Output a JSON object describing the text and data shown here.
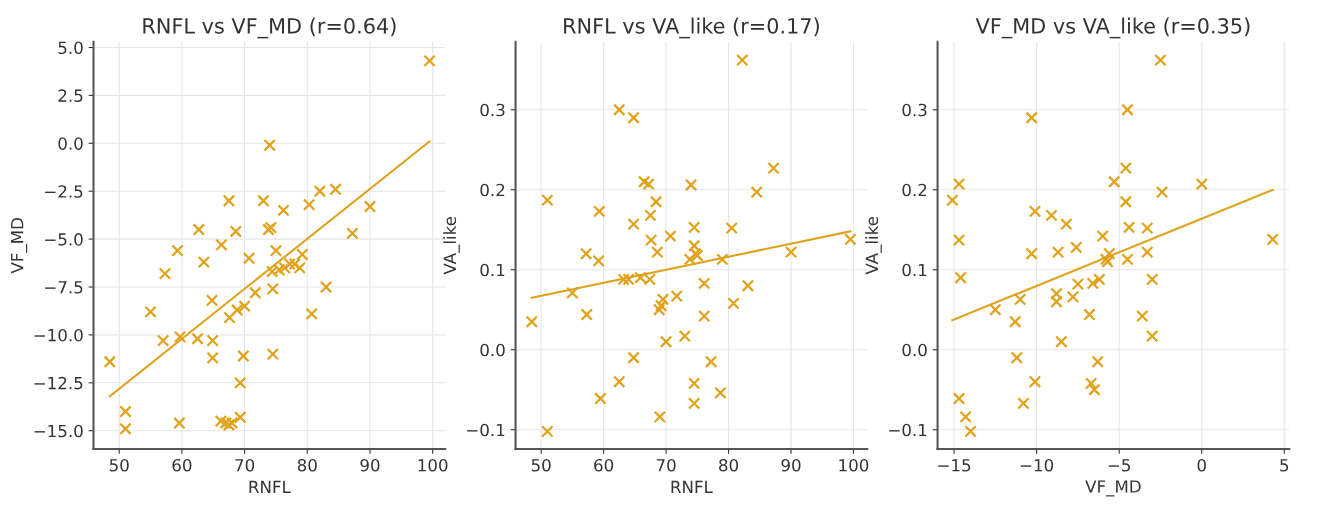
{
  "chart_data": [
    {
      "type": "scatter",
      "title": "RNFL vs VF_MD (r=0.64)",
      "xlabel": "RNFL",
      "ylabel": "VF_MD",
      "xlim": [
        45.9,
        102
      ],
      "ylim": [
        -15.95,
        5.3
      ],
      "xticks": [
        50,
        60,
        70,
        80,
        90,
        100
      ],
      "yticks": [
        {
          "value": -15,
          "label": "−15.0"
        },
        {
          "value": -12.5,
          "label": "−12.5"
        },
        {
          "value": -10,
          "label": "−10.0"
        },
        {
          "value": -7.5,
          "label": "−7.5"
        },
        {
          "value": -5,
          "label": "−5.0"
        },
        {
          "value": -2.5,
          "label": "−2.5"
        },
        {
          "value": 0,
          "label": "0.0"
        },
        {
          "value": 2.5,
          "label": "2.5"
        },
        {
          "value": 5,
          "label": "5.0"
        }
      ],
      "grid": true,
      "series": [
        {
          "marker": "cross",
          "color": "#e0a21a",
          "x": [
            48.5,
            51,
            51,
            55,
            57,
            57.3,
            59.3,
            59.7,
            59.6,
            62.5,
            62.7,
            63.5,
            64.8,
            64.9,
            64.9,
            66.3,
            66.2,
            67,
            67.5,
            68,
            69.3,
            67.5,
            67.6,
            68.6,
            68.8,
            69.3,
            69.8,
            70,
            70.7,
            71.7,
            73,
            73.8,
            74.2,
            74,
            74.4,
            74.5,
            74.5,
            75,
            75.5,
            76.2,
            76.4,
            77.2,
            78,
            78.8,
            79.2,
            80.3,
            80.7,
            82,
            83,
            84.5,
            87.2,
            90,
            99.5
          ],
          "values": [
            -11.4,
            -14.0,
            -14.9,
            -8.8,
            -10.3,
            -6.8,
            -5.6,
            -10.1,
            -14.6,
            -10.2,
            -4.5,
            -6.2,
            -8.2,
            -10.3,
            -11.2,
            -5.3,
            -14.5,
            -14.6,
            -14.7,
            -14.6,
            -14.3,
            -3.0,
            -9.1,
            -4.6,
            -8.7,
            -12.5,
            -11.1,
            -8.5,
            -6.0,
            -7.8,
            -3.0,
            -4.5,
            -4.4,
            -0.1,
            -6.7,
            -7.6,
            -11.0,
            -5.6,
            -6.6,
            -3.5,
            -6.5,
            -6.3,
            -6.3,
            -6.5,
            -5.8,
            -3.2,
            -8.9,
            -2.5,
            -7.5,
            -2.4,
            -4.7,
            -3.3,
            4.3
          ]
        },
        {
          "type": "line",
          "color": "#e0a21a",
          "x": [
            48.5,
            99.5
          ],
          "values": [
            -13.2,
            0.1
          ]
        }
      ]
    },
    {
      "type": "scatter",
      "title": "RNFL vs VA_like (r=0.17)",
      "xlabel": "RNFL",
      "ylabel": "VA_like",
      "xlim": [
        45.9,
        102.2
      ],
      "ylim": [
        -0.124,
        0.385
      ],
      "xticks": [
        50,
        60,
        70,
        80,
        90,
        100
      ],
      "yticks": [
        {
          "value": -0.1,
          "label": "−0.1"
        },
        {
          "value": 0,
          "label": "0.0"
        },
        {
          "value": 0.1,
          "label": "0.1"
        },
        {
          "value": 0.2,
          "label": "0.2"
        },
        {
          "value": 0.3,
          "label": "0.3"
        }
      ],
      "grid": true,
      "series": [
        {
          "marker": "cross",
          "color": "#e0a21a",
          "x": [
            48.5,
            51,
            51,
            55,
            57.2,
            57.3,
            59.2,
            59.3,
            59.5,
            62.5,
            62.5,
            63.2,
            64,
            64.8,
            64.8,
            64.8,
            65.9,
            66.5,
            67.2,
            67.4,
            67.5,
            67.6,
            68.4,
            68.6,
            68.9,
            69,
            69.2,
            69.5,
            70,
            70.7,
            71.7,
            73,
            73.8,
            74,
            74.5,
            74.5,
            74.7,
            74.5,
            74.5,
            75,
            76.1,
            76.1,
            77.2,
            78.7,
            79,
            80.5,
            80.8,
            82.2,
            83.1,
            84.5,
            87.2,
            90,
            99.5
          ],
          "values": [
            0.035,
            0.187,
            -0.102,
            0.071,
            0.12,
            0.044,
            0.111,
            0.173,
            -0.061,
            0.3,
            -0.04,
            0.088,
            0.088,
            0.29,
            0.157,
            -0.01,
            0.09,
            0.21,
            0.207,
            0.088,
            0.168,
            0.137,
            0.185,
            0.122,
            0.05,
            -0.084,
            0.055,
            0.063,
            0.01,
            0.142,
            0.067,
            0.017,
            0.113,
            0.206,
            0.153,
            0.13,
            0.12,
            -0.042,
            -0.067,
            0.118,
            0.083,
            0.042,
            -0.015,
            -0.054,
            0.113,
            0.152,
            0.058,
            0.362,
            0.08,
            0.197,
            0.227,
            0.122,
            0.138
          ]
        },
        {
          "type": "line",
          "color": "#e0a21a",
          "x": [
            48.5,
            99.5
          ],
          "values": [
            0.065,
            0.148
          ]
        }
      ]
    },
    {
      "type": "scatter",
      "title": "VF_MD vs VA_like (r=0.35)",
      "xlabel": "VF_MD",
      "ylabel": "VA_like",
      "xlim": [
        -16,
        5.3
      ],
      "ylim": [
        -0.124,
        0.385
      ],
      "xticks": [
        {
          "value": -15,
          "label": "−15"
        },
        {
          "value": -10,
          "label": "−10"
        },
        {
          "value": -5,
          "label": "−5"
        },
        0,
        5
      ],
      "yticks": [
        {
          "value": -0.1,
          "label": "−0.1"
        },
        {
          "value": 0,
          "label": "0.0"
        },
        {
          "value": 0.1,
          "label": "0.1"
        },
        {
          "value": 0.2,
          "label": "0.2"
        },
        {
          "value": 0.3,
          "label": "0.3"
        }
      ],
      "grid": true,
      "series": [
        {
          "marker": "cross",
          "color": "#e0a21a",
          "x": [
            -15.1,
            -14.7,
            -14.7,
            -14.6,
            -14.7,
            -14.3,
            -14,
            -12.5,
            -11.3,
            -11.2,
            -11,
            -10.8,
            -10.3,
            -10.3,
            -10.1,
            -10.1,
            -9.1,
            -8.8,
            -8.8,
            -8.7,
            -8.5,
            -8.2,
            -7.8,
            -7.6,
            -7.5,
            -6.8,
            -6.7,
            -6.6,
            -6.5,
            -6.3,
            -6.2,
            -6.0,
            -5.8,
            -5.6,
            -5.7,
            -5.3,
            -4.5,
            -4.6,
            -4.6,
            -4.4,
            -4.5,
            -3.6,
            -3.3,
            -3.3,
            -3.0,
            -3.0,
            -2.5,
            -2.4,
            0,
            4.3
          ],
          "values": [
            0.187,
            0.207,
            0.137,
            0.09,
            -0.061,
            -0.084,
            -0.102,
            0.05,
            0.035,
            -0.01,
            0.063,
            -0.067,
            0.29,
            0.12,
            0.173,
            -0.04,
            0.168,
            0.07,
            0.06,
            0.122,
            0.01,
            0.157,
            0.066,
            0.128,
            0.082,
            0.044,
            -0.042,
            0.083,
            -0.05,
            -0.015,
            0.088,
            0.142,
            0.113,
            0.12,
            0.11,
            0.21,
            0.3,
            0.227,
            0.185,
            0.153,
            0.113,
            0.042,
            0.152,
            0.122,
            0.088,
            0.017,
            0.362,
            0.197,
            0.207,
            0.138
          ]
        },
        {
          "type": "line",
          "color": "#e0a21a",
          "x": [
            -15.1,
            4.3
          ],
          "values": [
            0.037,
            0.2
          ]
        }
      ]
    }
  ]
}
